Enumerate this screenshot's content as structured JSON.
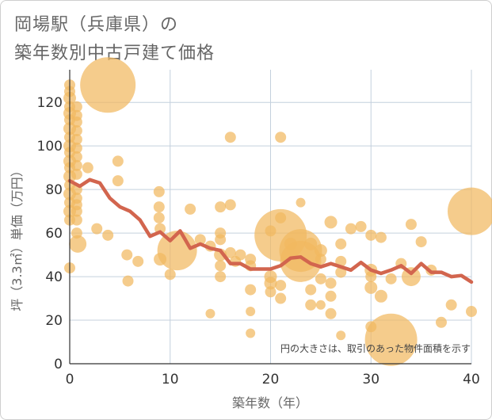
{
  "title_lines": [
    "岡場駅（兵庫県）の",
    "築年数別中古戸建て価格"
  ],
  "chart_data": {
    "type": "scatter",
    "xlabel": "築年数（年）",
    "ylabel": "坪（3.3㎡）単価（万円）",
    "xlim": [
      0,
      40
    ],
    "ylim": [
      0,
      135
    ],
    "xticks": [
      0,
      10,
      20,
      30,
      40
    ],
    "yticks": [
      0,
      20,
      40,
      60,
      80,
      100,
      120
    ],
    "grid": true,
    "note": "円の大きさは、取引のあった物件面積を示す",
    "colors": {
      "bubble": "#f1b95f",
      "line": "#d2654e",
      "grid": "#c4d0dd",
      "axis": "#333333"
    },
    "points": [
      {
        "x": 0,
        "y": 128,
        "r": 7
      },
      {
        "x": 0,
        "y": 125,
        "r": 7
      },
      {
        "x": 0,
        "y": 122,
        "r": 8
      },
      {
        "x": 0,
        "y": 118,
        "r": 7
      },
      {
        "x": 0,
        "y": 115,
        "r": 8
      },
      {
        "x": 0,
        "y": 112,
        "r": 7
      },
      {
        "x": 0,
        "y": 108,
        "r": 8
      },
      {
        "x": 0,
        "y": 104,
        "r": 7
      },
      {
        "x": 0,
        "y": 100,
        "r": 8
      },
      {
        "x": 0,
        "y": 97,
        "r": 7
      },
      {
        "x": 0,
        "y": 93,
        "r": 8
      },
      {
        "x": 0,
        "y": 90,
        "r": 7
      },
      {
        "x": 0,
        "y": 86,
        "r": 8
      },
      {
        "x": 0,
        "y": 82,
        "r": 7
      },
      {
        "x": 0,
        "y": 78,
        "r": 8
      },
      {
        "x": 0,
        "y": 74,
        "r": 7
      },
      {
        "x": 0,
        "y": 70,
        "r": 8
      },
      {
        "x": 0,
        "y": 66,
        "r": 7
      },
      {
        "x": 0,
        "y": 44,
        "r": 7
      },
      {
        "x": 0.7,
        "y": 118,
        "r": 7
      },
      {
        "x": 0.7,
        "y": 114,
        "r": 7
      },
      {
        "x": 0.7,
        "y": 111,
        "r": 7
      },
      {
        "x": 0.7,
        "y": 107,
        "r": 7
      },
      {
        "x": 0.7,
        "y": 103,
        "r": 7
      },
      {
        "x": 0.7,
        "y": 99,
        "r": 7
      },
      {
        "x": 0.7,
        "y": 95,
        "r": 7
      },
      {
        "x": 0.7,
        "y": 91,
        "r": 7
      },
      {
        "x": 0.7,
        "y": 87,
        "r": 7
      },
      {
        "x": 0.7,
        "y": 80,
        "r": 7
      },
      {
        "x": 0.7,
        "y": 76,
        "r": 7
      },
      {
        "x": 0.7,
        "y": 73,
        "r": 7
      },
      {
        "x": 0.7,
        "y": 70,
        "r": 7
      },
      {
        "x": 0.7,
        "y": 66,
        "r": 7
      },
      {
        "x": 0.7,
        "y": 60,
        "r": 7
      },
      {
        "x": 0.8,
        "y": 55,
        "r": 11
      },
      {
        "x": 1.8,
        "y": 90,
        "r": 7
      },
      {
        "x": 3.8,
        "y": 128,
        "r": 35
      },
      {
        "x": 2.7,
        "y": 62,
        "r": 7
      },
      {
        "x": 3.8,
        "y": 59,
        "r": 7
      },
      {
        "x": 4.8,
        "y": 93,
        "r": 7
      },
      {
        "x": 4.8,
        "y": 84,
        "r": 7
      },
      {
        "x": 5.7,
        "y": 50,
        "r": 7
      },
      {
        "x": 5.8,
        "y": 38,
        "r": 7
      },
      {
        "x": 6.8,
        "y": 47,
        "r": 7
      },
      {
        "x": 8.9,
        "y": 79,
        "r": 7
      },
      {
        "x": 8.9,
        "y": 72,
        "r": 7
      },
      {
        "x": 8.9,
        "y": 67,
        "r": 7
      },
      {
        "x": 9.0,
        "y": 62,
        "r": 7
      },
      {
        "x": 9.0,
        "y": 48,
        "r": 8
      },
      {
        "x": 10.0,
        "y": 41,
        "r": 7
      },
      {
        "x": 10.7,
        "y": 52,
        "r": 25
      },
      {
        "x": 12.0,
        "y": 71,
        "r": 7
      },
      {
        "x": 13.0,
        "y": 57,
        "r": 7
      },
      {
        "x": 14.0,
        "y": 54,
        "r": 7
      },
      {
        "x": 14.0,
        "y": 23,
        "r": 6
      },
      {
        "x": 15.0,
        "y": 72,
        "r": 7
      },
      {
        "x": 15.0,
        "y": 60,
        "r": 7
      },
      {
        "x": 15.0,
        "y": 57,
        "r": 7
      },
      {
        "x": 15.0,
        "y": 50,
        "r": 8
      },
      {
        "x": 15.0,
        "y": 45,
        "r": 7
      },
      {
        "x": 15.0,
        "y": 40,
        "r": 7
      },
      {
        "x": 16.0,
        "y": 104,
        "r": 7
      },
      {
        "x": 16.0,
        "y": 73,
        "r": 7
      },
      {
        "x": 16.0,
        "y": 51,
        "r": 7
      },
      {
        "x": 16.5,
        "y": 47,
        "r": 7
      },
      {
        "x": 17.0,
        "y": 50,
        "r": 7
      },
      {
        "x": 18.0,
        "y": 48,
        "r": 7
      },
      {
        "x": 18.0,
        "y": 45,
        "r": 7
      },
      {
        "x": 18.0,
        "y": 34,
        "r": 7
      },
      {
        "x": 18.0,
        "y": 24,
        "r": 6
      },
      {
        "x": 18.0,
        "y": 14,
        "r": 6
      },
      {
        "x": 20.0,
        "y": 61,
        "r": 7
      },
      {
        "x": 20.0,
        "y": 40,
        "r": 8
      },
      {
        "x": 20.0,
        "y": 37,
        "r": 8
      },
      {
        "x": 20.0,
        "y": 33,
        "r": 7
      },
      {
        "x": 21.0,
        "y": 104,
        "r": 7
      },
      {
        "x": 21.0,
        "y": 67,
        "r": 7
      },
      {
        "x": 21.0,
        "y": 59,
        "r": 33
      },
      {
        "x": 21.0,
        "y": 36,
        "r": 7
      },
      {
        "x": 21.0,
        "y": 30,
        "r": 7
      },
      {
        "x": 22.0,
        "y": 55,
        "r": 8
      },
      {
        "x": 23.0,
        "y": 74,
        "r": 6
      },
      {
        "x": 23.0,
        "y": 52,
        "r": 27
      },
      {
        "x": 23.0,
        "y": 47,
        "r": 26
      },
      {
        "x": 24.0,
        "y": 55,
        "r": 8
      },
      {
        "x": 24.0,
        "y": 34,
        "r": 7
      },
      {
        "x": 24.0,
        "y": 27,
        "r": 7
      },
      {
        "x": 25.0,
        "y": 52,
        "r": 8
      },
      {
        "x": 25.0,
        "y": 48,
        "r": 7
      },
      {
        "x": 25.0,
        "y": 39,
        "r": 7
      },
      {
        "x": 25.0,
        "y": 27,
        "r": 6
      },
      {
        "x": 26.0,
        "y": 65,
        "r": 8
      },
      {
        "x": 26.0,
        "y": 37,
        "r": 7
      },
      {
        "x": 26.0,
        "y": 31,
        "r": 7
      },
      {
        "x": 26.0,
        "y": 23,
        "r": 7
      },
      {
        "x": 27.0,
        "y": 55,
        "r": 7
      },
      {
        "x": 27.0,
        "y": 47,
        "r": 7
      },
      {
        "x": 27.0,
        "y": 42,
        "r": 7
      },
      {
        "x": 27.0,
        "y": 13,
        "r": 6
      },
      {
        "x": 28.0,
        "y": 62,
        "r": 7
      },
      {
        "x": 29.0,
        "y": 63,
        "r": 7
      },
      {
        "x": 30.0,
        "y": 59,
        "r": 7
      },
      {
        "x": 30.0,
        "y": 43,
        "r": 8
      },
      {
        "x": 30.0,
        "y": 40,
        "r": 7
      },
      {
        "x": 30.0,
        "y": 35,
        "r": 8
      },
      {
        "x": 30.0,
        "y": 17,
        "r": 7
      },
      {
        "x": 31.0,
        "y": 58,
        "r": 7
      },
      {
        "x": 31.0,
        "y": 31,
        "r": 8
      },
      {
        "x": 32.0,
        "y": 39,
        "r": 7
      },
      {
        "x": 32.0,
        "y": 11,
        "r": 33
      },
      {
        "x": 33.0,
        "y": 46,
        "r": 7
      },
      {
        "x": 34.0,
        "y": 64,
        "r": 7
      },
      {
        "x": 34.0,
        "y": 40,
        "r": 12
      },
      {
        "x": 35.0,
        "y": 56,
        "r": 7
      },
      {
        "x": 36.0,
        "y": 43,
        "r": 7
      },
      {
        "x": 37.0,
        "y": 19,
        "r": 7
      },
      {
        "x": 38.0,
        "y": 27,
        "r": 7
      },
      {
        "x": 40.0,
        "y": 70,
        "r": 30
      },
      {
        "x": 40.0,
        "y": 24,
        "r": 7
      }
    ],
    "trend": {
      "x": [
        0,
        1,
        2,
        3,
        4,
        5,
        6,
        7,
        8,
        9,
        10,
        11,
        12,
        13,
        14,
        15,
        16,
        17,
        18,
        19,
        20,
        21,
        22,
        23,
        24,
        25,
        26,
        27,
        28,
        29,
        30,
        31,
        32,
        33,
        34,
        35,
        36,
        37,
        38,
        39,
        40
      ],
      "y": [
        84,
        81.5,
        84.5,
        83,
        76,
        72,
        70,
        66,
        58.5,
        60.5,
        56.5,
        61,
        53,
        55,
        53,
        52,
        46,
        46,
        43.5,
        43.5,
        43.5,
        45,
        48.5,
        49,
        46,
        44.5,
        46,
        44.5,
        43,
        46.5,
        43,
        41.5,
        43,
        45,
        41.5,
        46,
        42,
        42,
        40,
        40.5,
        37.5
      ]
    }
  }
}
